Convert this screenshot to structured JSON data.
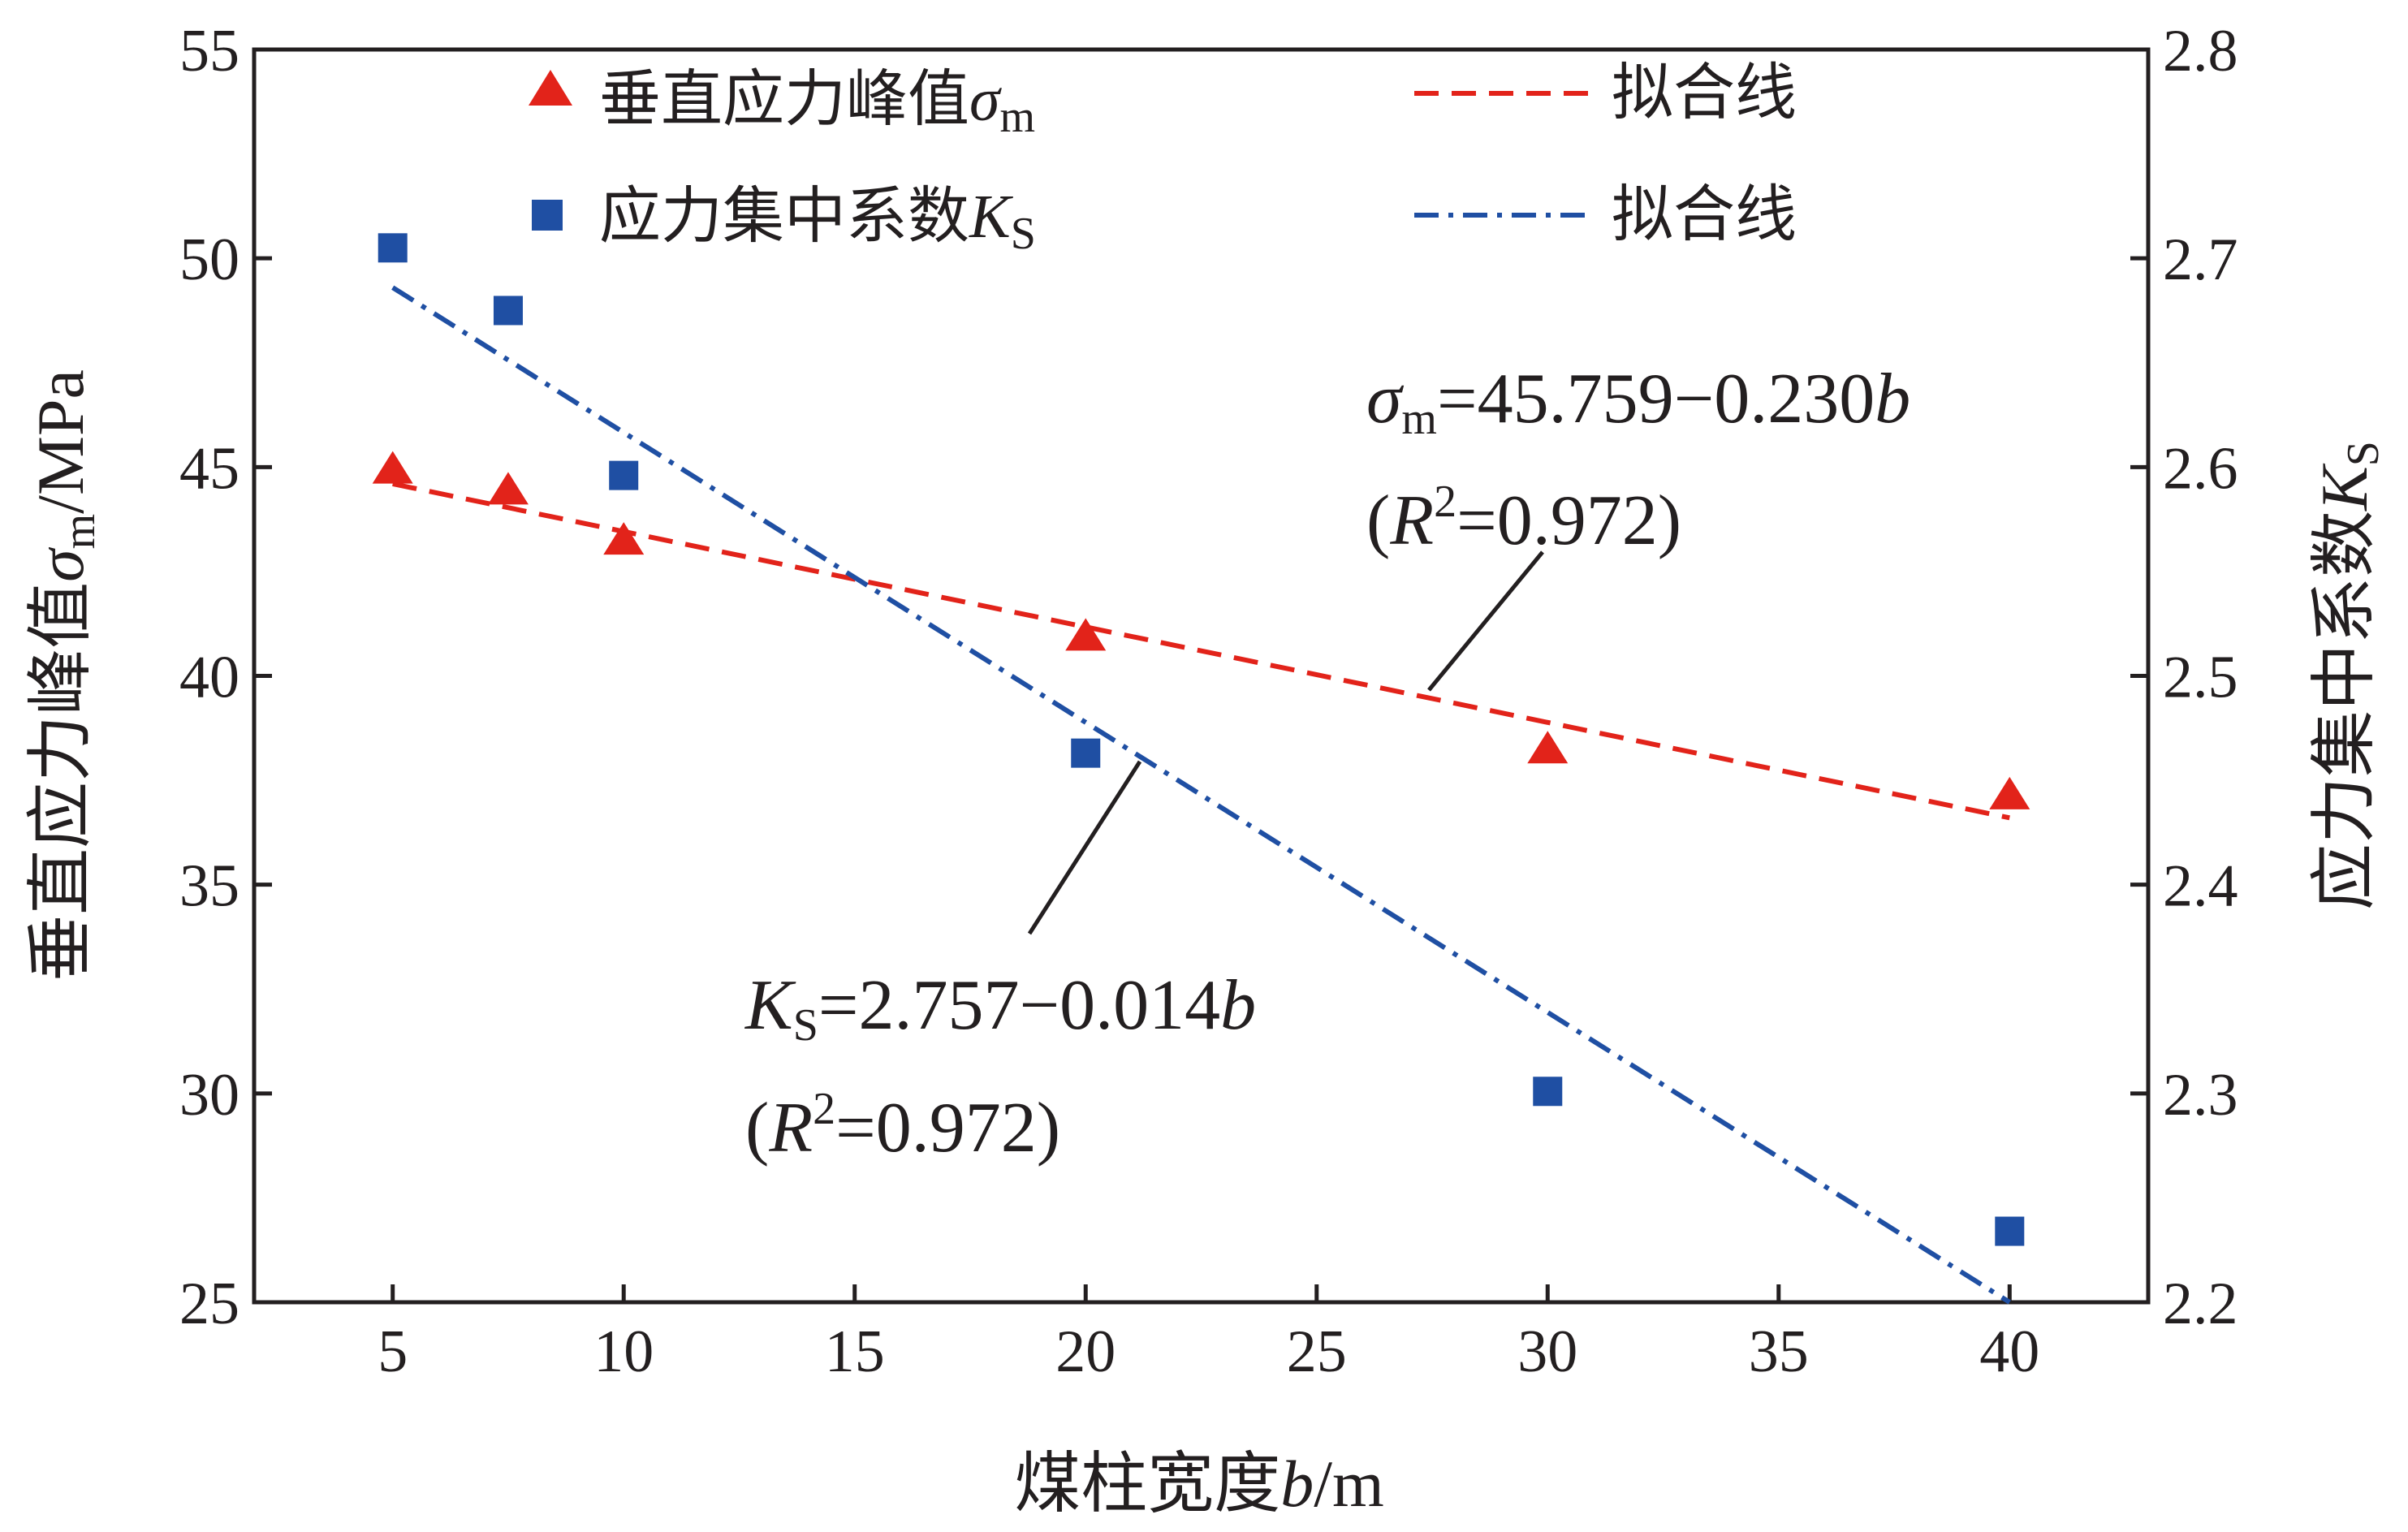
{
  "chart_data": {
    "type": "scatter",
    "x": [
      5,
      7.5,
      10,
      20,
      30,
      40
    ],
    "xlim": [
      2,
      43
    ],
    "xticks": [
      "5",
      "10",
      "15",
      "20",
      "25",
      "30",
      "35",
      "40"
    ],
    "xtick_values": [
      5,
      10,
      15,
      20,
      25,
      30,
      35,
      40
    ],
    "xlabel": {
      "text": "煤柱宽度",
      "var": "b",
      "unit": "/m"
    },
    "ylim_left": [
      25,
      55
    ],
    "yticks_left": [
      "25",
      "30",
      "35",
      "40",
      "45",
      "50",
      "55"
    ],
    "ytick_values_left": [
      25,
      30,
      35,
      40,
      45,
      50,
      55
    ],
    "ylabel_left": {
      "text": "垂直应力峰值",
      "var": "σ",
      "sub": "m",
      "unit": "/MPa"
    },
    "ylim_right": [
      2.2,
      2.8
    ],
    "yticks_right": [
      "2.2",
      "2.3",
      "2.4",
      "2.5",
      "2.6",
      "2.7",
      "2.8"
    ],
    "ytick_values_right": [
      2.2,
      2.3,
      2.4,
      2.5,
      2.6,
      2.7,
      2.8
    ],
    "ylabel_right": {
      "text": "应力集中系数",
      "var": "K",
      "sub": "S"
    },
    "series": [
      {
        "name": "垂直应力峰值σm",
        "legend": {
          "text": "垂直应力峰值",
          "var": "σ",
          "sub": "m"
        },
        "axis": "left",
        "marker": "triangle",
        "color": "#e2231a",
        "values": [
          44.9,
          44.4,
          43.2,
          40.9,
          38.2,
          37.1
        ]
      },
      {
        "name": "应力集中系数KS",
        "legend": {
          "text": "应力集中系数",
          "var": "K",
          "sub": "S"
        },
        "axis": "right",
        "marker": "square",
        "color": "#1f4fa3",
        "values": [
          2.705,
          2.675,
          2.596,
          2.463,
          2.301,
          2.234
        ]
      }
    ],
    "fits": [
      {
        "legend": "拟合线",
        "axis": "left",
        "style": "dash",
        "color": "#e2231a",
        "x": [
          5,
          40
        ],
        "y": [
          44.6,
          36.6
        ],
        "equation": {
          "lhs_var": "σ",
          "lhs_sub": "m",
          "rhs": "=45.759−0.230",
          "rhs_var": "b"
        },
        "r2": {
          "open": "(",
          "var": "R",
          "sup": "2",
          "rest": "=0.972)"
        }
      },
      {
        "legend": "拟合线",
        "axis": "right",
        "style": "dashdot",
        "color": "#1f4fa3",
        "x": [
          5,
          40
        ],
        "y": [
          2.686,
          2.2
        ],
        "equation": {
          "lhs_var": "K",
          "lhs_sub": "S",
          "rhs": "=2.757−0.014",
          "rhs_var": "b"
        },
        "r2": {
          "open": "(",
          "var": "R",
          "sup": "2",
          "rest": "=0.972)"
        }
      }
    ]
  }
}
